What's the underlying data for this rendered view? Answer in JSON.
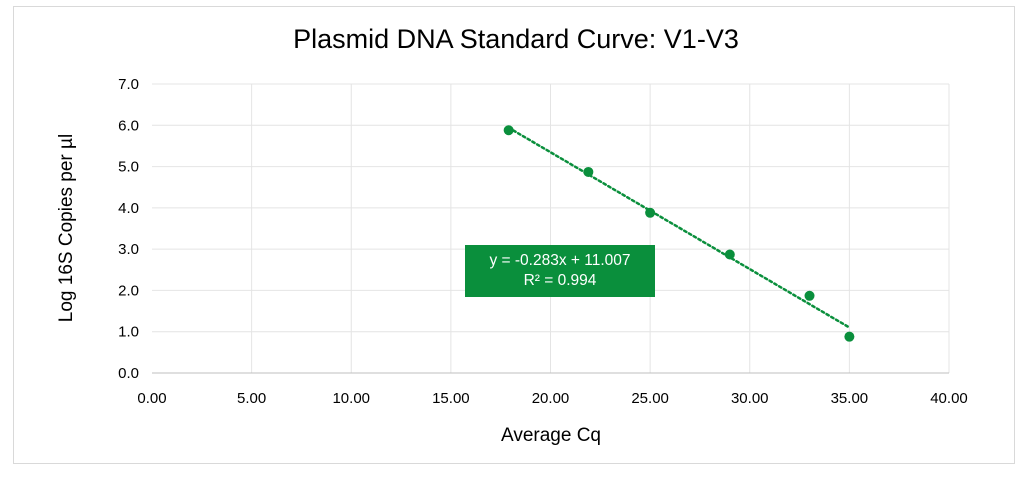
{
  "chart_data": {
    "type": "scatter",
    "title": "Plasmid DNA Standard Curve: V1-V3",
    "xlabel": "Average Cq",
    "ylabel": "Log 16S Copies per µl",
    "xlim": [
      0,
      40
    ],
    "ylim": [
      0,
      7
    ],
    "x_ticks": [
      "0.00",
      "5.00",
      "10.00",
      "15.00",
      "20.00",
      "25.00",
      "30.00",
      "35.00",
      "40.00"
    ],
    "y_ticks": [
      "0.0",
      "1.0",
      "2.0",
      "3.0",
      "4.0",
      "5.0",
      "6.0",
      "7.0"
    ],
    "grid": true,
    "legend": "none",
    "series": [
      {
        "x": [
          17.9,
          21.9,
          25.0,
          29.0,
          33.0,
          35.0
        ],
        "y": [
          5.88,
          4.87,
          3.88,
          2.87,
          1.87,
          0.88
        ],
        "color": "#0a8f3c"
      }
    ],
    "trendline": {
      "type": "linear",
      "slope": -0.283,
      "intercept": 11.007,
      "x_range": [
        17.9,
        35.0
      ],
      "style": "dotted",
      "color": "#0a8f3c"
    },
    "annotation": {
      "equation": "y = -0.283x + 11.007",
      "r_squared": "R² = 0.994",
      "background": "#0a8f3c"
    }
  }
}
